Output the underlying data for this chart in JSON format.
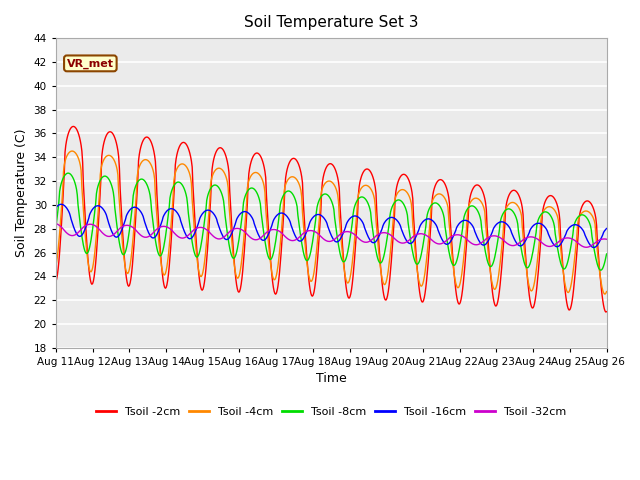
{
  "title": "Soil Temperature Set 3",
  "xlabel": "Time",
  "ylabel": "Soil Temperature (C)",
  "ylim": [
    18,
    44
  ],
  "yticks": [
    18,
    20,
    22,
    24,
    26,
    28,
    30,
    32,
    34,
    36,
    38,
    40,
    42,
    44
  ],
  "colors": {
    "tsoil_2cm": "#ff0000",
    "tsoil_4cm": "#ff8800",
    "tsoil_8cm": "#00dd00",
    "tsoil_16cm": "#0000ff",
    "tsoil_32cm": "#cc00cc"
  },
  "legend_labels": [
    "Tsoil -2cm",
    "Tsoil -4cm",
    "Tsoil -8cm",
    "Tsoil -16cm",
    "Tsoil -32cm"
  ],
  "annotation_text": "VR_met",
  "fig_bg": "#ffffff",
  "plot_bg": "#ebebeb",
  "grid_color": "#ffffff",
  "n_days": 15,
  "start_day": 11,
  "points_per_day": 48
}
